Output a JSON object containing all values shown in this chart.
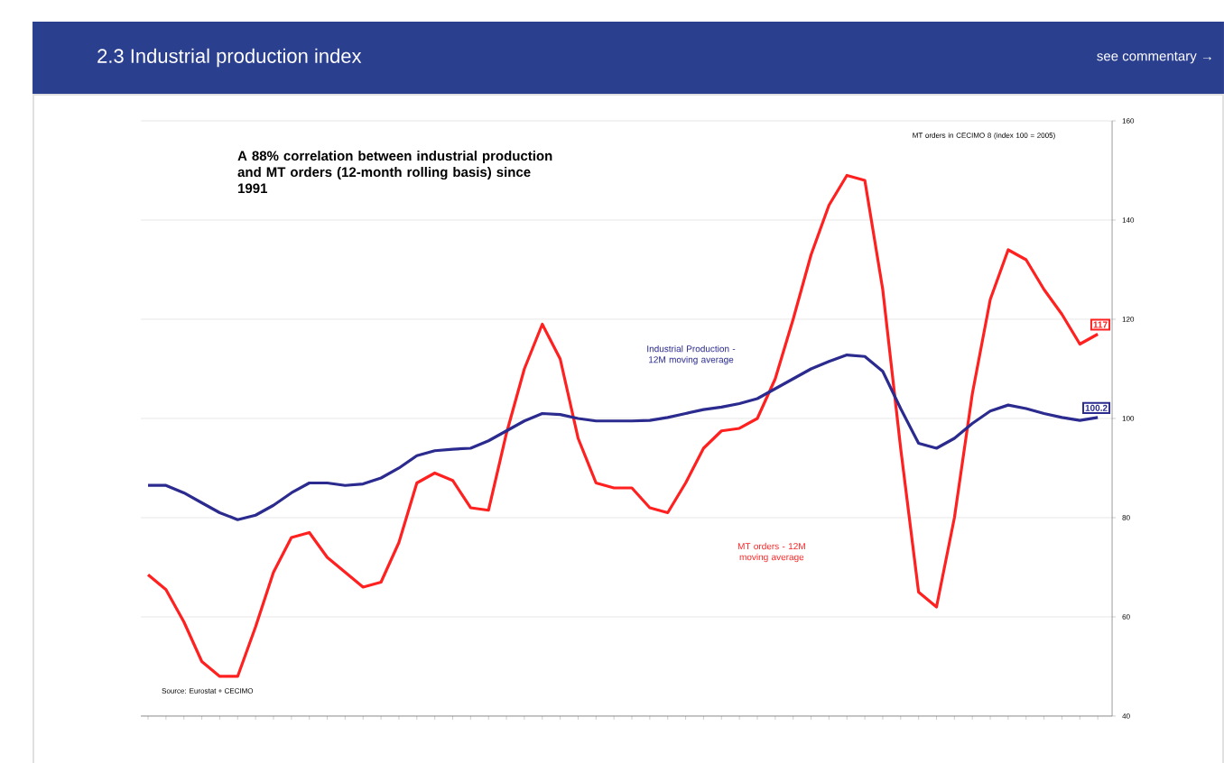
{
  "chart_data": {
    "type": "line",
    "title": "2.3 Industrial production index",
    "annotations": [
      "see commentary →",
      "A 88% correlation between industrial production and MT orders (12-month rolling basis) since 1991",
      "MT orders in CECIMO 8 (index 100 = 2005)",
      "Source: Eurostat + CECIMO"
    ],
    "categories": [
      null,
      null,
      null,
      null,
      null,
      null,
      null,
      null,
      null,
      null,
      null,
      null,
      null,
      null,
      null,
      null,
      null,
      null,
      null,
      null,
      null,
      null,
      null,
      null,
      null,
      null,
      null,
      null,
      null,
      null,
      null,
      null,
      null,
      null,
      null,
      null,
      null,
      null,
      null,
      null,
      null,
      null,
      null,
      null,
      null,
      null,
      null,
      null,
      null,
      null,
      null,
      null,
      null,
      null
    ],
    "series": [
      {
        "name": "MT orders - 12M moving average",
        "color": "#ff2020",
        "values": [
          68.5,
          65.5,
          59,
          51,
          48,
          48,
          58,
          69,
          76,
          77,
          72,
          69,
          66,
          67,
          75,
          87,
          89,
          87.5,
          82,
          81.5,
          97,
          110,
          119,
          112,
          96,
          87,
          86,
          86,
          82,
          81,
          87,
          94,
          97.5,
          98,
          100,
          108,
          120,
          133,
          143,
          149,
          148,
          126,
          94,
          65,
          62,
          80,
          105,
          124,
          134,
          132,
          126,
          121,
          115,
          117
        ],
        "value_labels": [
          null,
          null,
          null,
          null,
          null,
          null,
          null,
          null,
          null,
          null,
          null,
          null,
          null,
          null,
          null,
          null,
          null,
          null,
          null,
          null,
          null,
          null,
          null,
          null,
          null,
          null,
          null,
          null,
          null,
          null,
          null,
          null,
          null,
          null,
          null,
          null,
          null,
          null,
          null,
          null,
          null,
          null,
          null,
          null,
          null,
          null,
          null,
          null,
          null,
          null,
          null,
          null,
          null,
          "117"
        ]
      },
      {
        "name": "Industrial Production - 12M moving average",
        "color": "#2a2a8f",
        "values": [
          86.5,
          86.5,
          85,
          83,
          81,
          79.6,
          80.5,
          82.5,
          85,
          87,
          87,
          86.5,
          86.8,
          88,
          90,
          92.5,
          93.5,
          93.8,
          94,
          95.5,
          97.5,
          99.5,
          101,
          100.8,
          100,
          99.5,
          99.5,
          99.5,
          99.6,
          100.2,
          101,
          101.8,
          102.3,
          103,
          104,
          106,
          108,
          110,
          111.5,
          112.8,
          112.5,
          109.5,
          102,
          95,
          94,
          96,
          99,
          101.5,
          102.7,
          102,
          101,
          100.2,
          99.6,
          100.2
        ],
        "value_labels": [
          null,
          null,
          null,
          null,
          null,
          null,
          null,
          null,
          null,
          null,
          null,
          null,
          null,
          null,
          null,
          null,
          null,
          null,
          null,
          null,
          null,
          null,
          null,
          null,
          null,
          null,
          null,
          null,
          null,
          null,
          null,
          null,
          null,
          null,
          null,
          null,
          null,
          null,
          null,
          null,
          null,
          null,
          null,
          null,
          null,
          null,
          null,
          null,
          null,
          null,
          null,
          null,
          null,
          "100.2"
        ]
      }
    ],
    "ylim": [
      40,
      160
    ],
    "yticks": [
      40,
      60,
      80,
      100,
      120,
      140,
      160
    ],
    "grid": "y",
    "legend": false
  }
}
